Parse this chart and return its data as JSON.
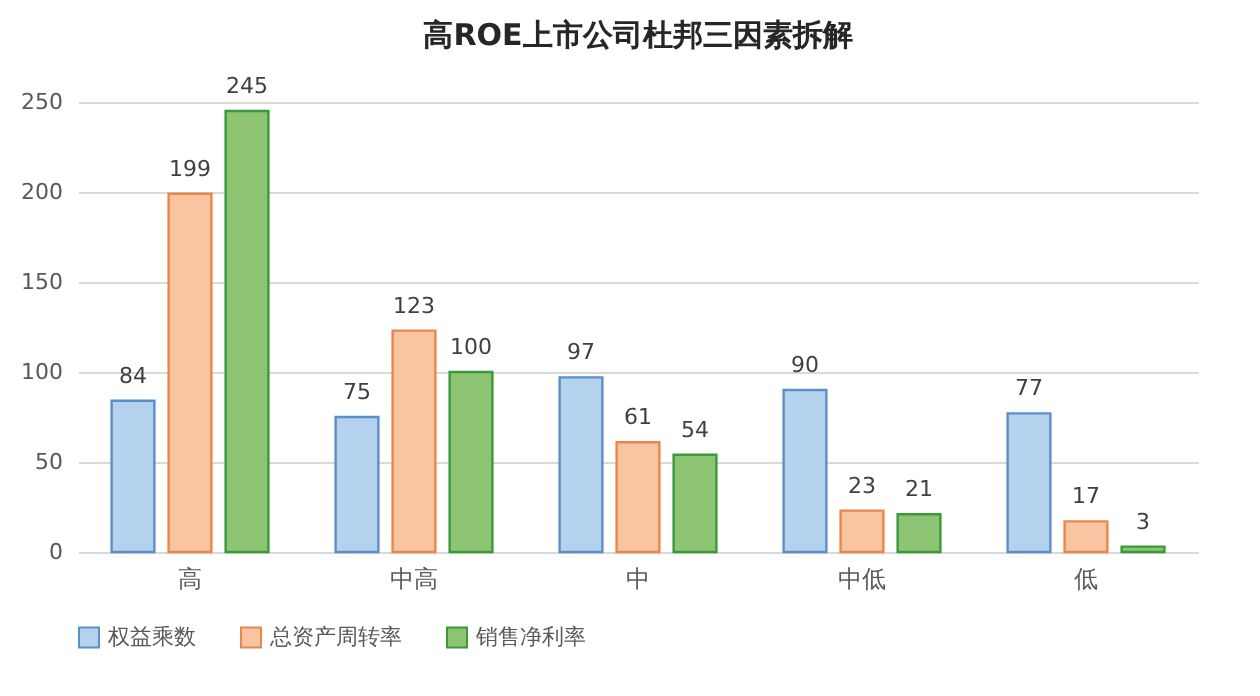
{
  "chart_data": {
    "type": "bar",
    "title": "高ROE上市公司杜邦三因素拆解",
    "categories": [
      "高",
      "中高",
      "中",
      "中低",
      "低"
    ],
    "series": [
      {
        "name": "权益乘数",
        "color": "#b4d2ee",
        "values": [
          84,
          75,
          97,
          90,
          77
        ]
      },
      {
        "name": "总资产周转率",
        "color": "#f8c4a2",
        "values": [
          199,
          123,
          61,
          23,
          17
        ]
      },
      {
        "name": "销售净利率",
        "color": "#8cc473",
        "values": [
          245,
          100,
          54,
          21,
          3
        ]
      }
    ],
    "ylim": [
      0,
      250
    ],
    "yticks": [
      0,
      50,
      100,
      150,
      200,
      250
    ],
    "grid": "y",
    "legend": "bottom",
    "data_labels": true
  }
}
